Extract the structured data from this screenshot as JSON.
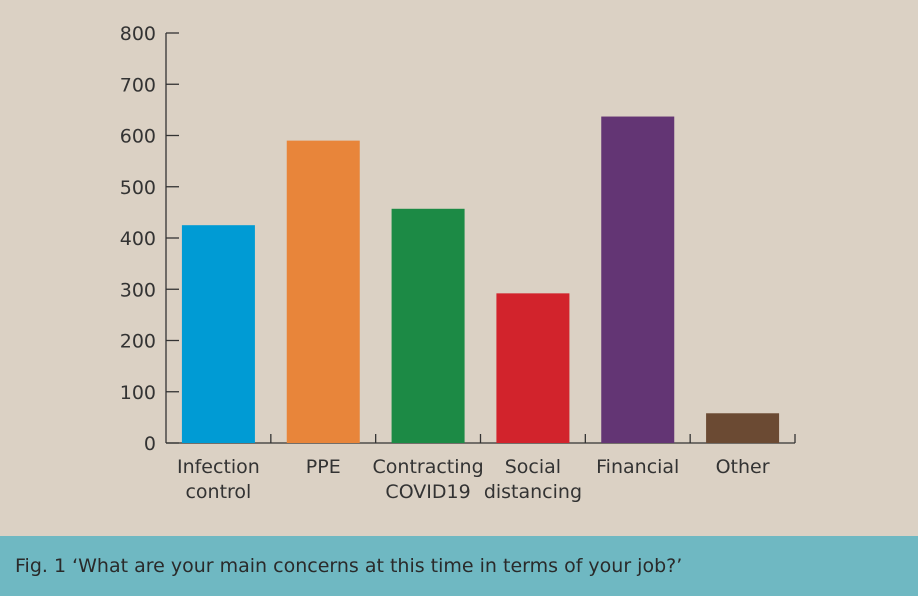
{
  "chart_data": {
    "type": "bar",
    "categories": [
      [
        "Infection",
        "control"
      ],
      [
        "PPE"
      ],
      [
        "Contracting",
        "COVID19"
      ],
      [
        "Social",
        "distancing"
      ],
      [
        "Financial"
      ],
      [
        "Other"
      ]
    ],
    "values": [
      425,
      590,
      457,
      292,
      637,
      58
    ],
    "colors": [
      "#009bd4",
      "#e8853a",
      "#1c8a45",
      "#d2232c",
      "#633574",
      "#6b4a33"
    ],
    "ylim": [
      0,
      800
    ],
    "yticks": [
      0,
      100,
      200,
      300,
      400,
      500,
      600,
      700,
      800
    ],
    "grid": false
  },
  "caption": "Fig. 1 ‘What are your main concerns at this time in terms of your job?’"
}
